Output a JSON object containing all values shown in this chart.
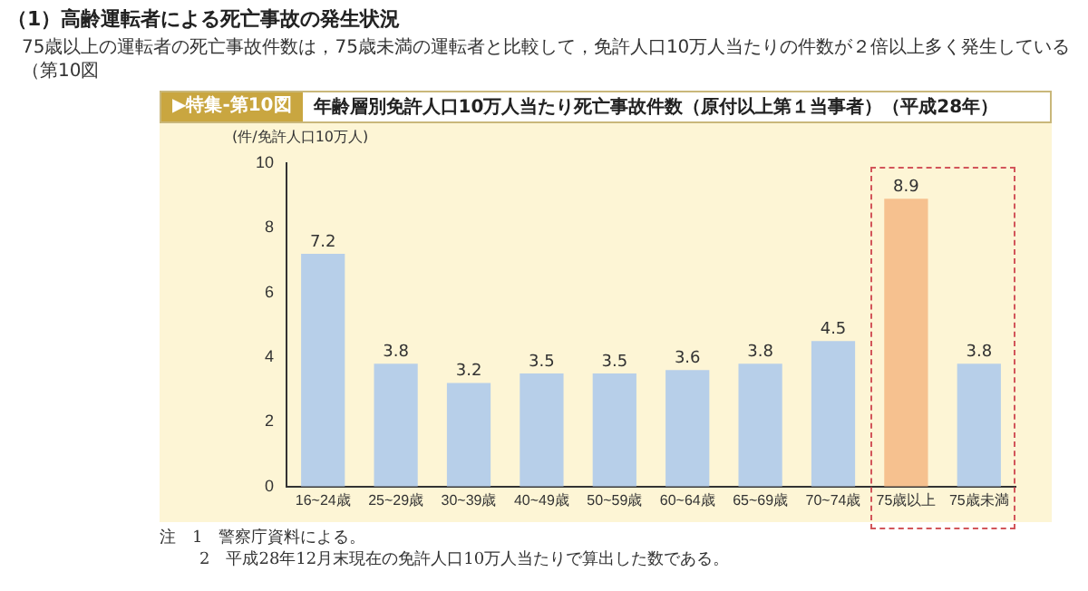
{
  "chart_data": {
    "type": "bar",
    "title": "年齢層別免許人口10万人当たり死亡事故件数（原付以上第１当事者）（平成28年）",
    "subtitle": "▶特集-第10図",
    "ylabel": "(件/免許人口10万人)",
    "categories": [
      "16~24歳",
      "25~29歳",
      "30~39歳",
      "40~49歳",
      "50~59歳",
      "60~64歳",
      "65~69歳",
      "70~74歳",
      "75歳以上",
      "75歳未満"
    ],
    "values": [
      7.2,
      3.8,
      3.2,
      3.5,
      3.5,
      3.6,
      3.8,
      4.5,
      8.9,
      3.8
    ],
    "colors": [
      "#b7cfe9",
      "#b7cfe9",
      "#b7cfe9",
      "#b7cfe9",
      "#b7cfe9",
      "#b7cfe9",
      "#b7cfe9",
      "#b7cfe9",
      "#f6c18f",
      "#b7cfe9"
    ],
    "ylim": [
      0,
      10
    ],
    "yticks": [
      0,
      2,
      4,
      6,
      8,
      10
    ],
    "grid": false,
    "legend": false,
    "data_labels": true,
    "annotations": [
      "（1）高齢運転者による死亡事故の発生状況",
      "75歳以上の運転者の死亡事故件数は，75歳未満の運転者と比較して，免許人口10万人当たりの件数が２倍以上多く発生している（第10図",
      "注　1　警察庁資料による。",
      "2　平成28年12月末現在の免許人口10万人当たりで算出した数である。"
    ]
  }
}
